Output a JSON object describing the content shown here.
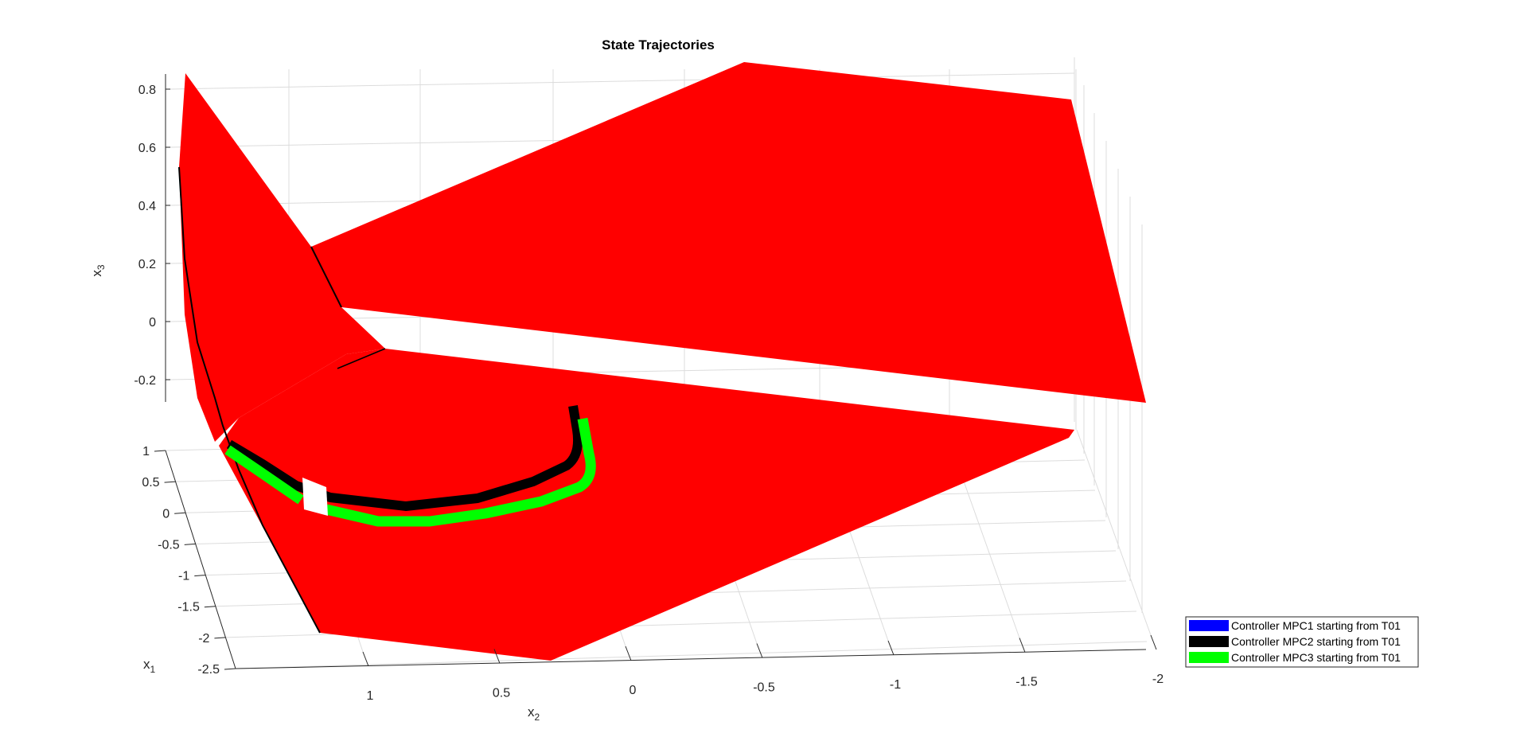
{
  "chart_data": {
    "type": "3d-surface-trajectory",
    "title": "State Trajectories",
    "xlabel": "x",
    "xlabel_sub": "1",
    "ylabel": "x",
    "ylabel_sub": "2",
    "zlabel": "x",
    "zlabel_sub": "3",
    "x1_ticks": [
      "1",
      "0.5",
      "0",
      "-0.5",
      "-1",
      "-1.5",
      "-2",
      "-2.5"
    ],
    "x2_ticks": [
      "1",
      "0.5",
      "0",
      "-0.5",
      "-1",
      "-1.5",
      "-2"
    ],
    "x3_ticks": [
      "0.8",
      "0.6",
      "0.4",
      "0.2",
      "0",
      "-0.2"
    ],
    "grid": true,
    "legend_position": "bottom-right",
    "surface_color": "#ff0000",
    "series": [
      {
        "name": "Controller MPC1 starting from T01",
        "color": "#0000ff"
      },
      {
        "name": "Controller MPC2 starting from T01",
        "color": "#000000"
      },
      {
        "name": "Controller MPC3 starting from T01",
        "color": "#00ff00"
      }
    ]
  }
}
